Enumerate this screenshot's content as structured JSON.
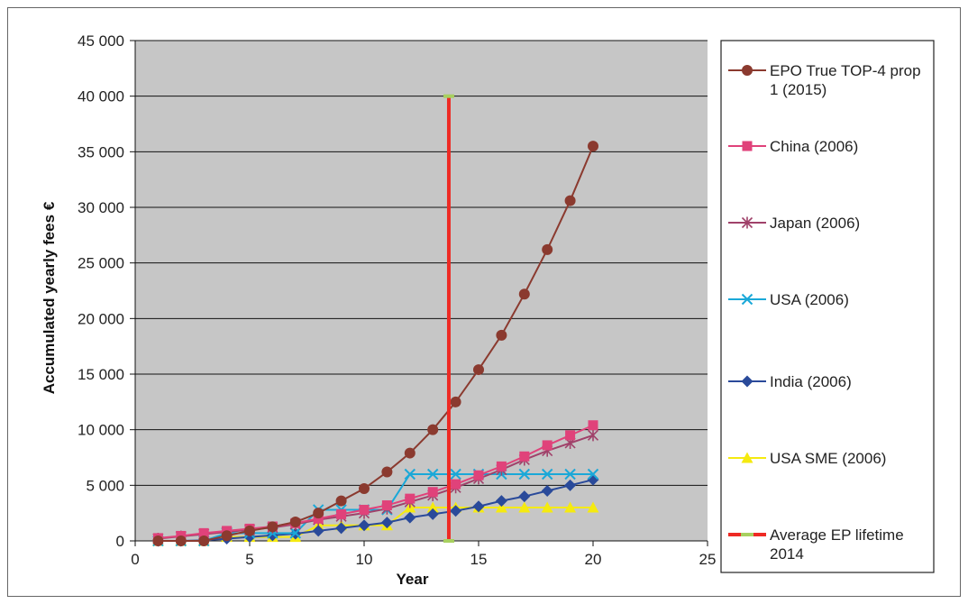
{
  "chart_data": {
    "type": "line",
    "xlabel": "Year",
    "ylabel": "Accumulated yearly fees €",
    "xlim": [
      0,
      25
    ],
    "ylim": [
      0,
      45000
    ],
    "x_ticks": [
      0,
      5,
      10,
      15,
      20,
      25
    ],
    "x_tick_labels": [
      "0",
      "5",
      "10",
      "15",
      "20",
      "25"
    ],
    "y_ticks": [
      0,
      5000,
      10000,
      15000,
      20000,
      25000,
      30000,
      35000,
      40000,
      45000
    ],
    "y_tick_labels": [
      "0",
      "5 000",
      "10 000",
      "15 000",
      "20 000",
      "25 000",
      "30 000",
      "35 000",
      "40 000",
      "45 000"
    ],
    "grid": true,
    "legend_position": "right",
    "x": [
      1,
      2,
      3,
      4,
      5,
      6,
      7,
      8,
      9,
      10,
      11,
      12,
      13,
      14,
      15,
      16,
      17,
      18,
      19,
      20
    ],
    "series": [
      {
        "name_lines": [
          "EPO True TOP-4 prop",
          "1 (2015)"
        ],
        "color": "#8b3a2f",
        "marker": "circle",
        "values": [
          0,
          0,
          0,
          470,
          900,
          1270,
          1700,
          2500,
          3600,
          4700,
          6200,
          7900,
          10000,
          12500,
          15400,
          18500,
          22200,
          26200,
          30600,
          35500
        ]
      },
      {
        "name_lines": [
          "China (2006)"
        ],
        "color": "#e0427a",
        "marker": "square",
        "values": [
          250,
          450,
          700,
          900,
          1100,
          1300,
          1600,
          2000,
          2400,
          2800,
          3200,
          3800,
          4400,
          5100,
          5900,
          6700,
          7600,
          8600,
          9500,
          10400
        ]
      },
      {
        "name_lines": [
          "Japan (2006)"
        ],
        "color": "#a0426a",
        "marker": "asterisk",
        "values": [
          200,
          400,
          600,
          800,
          1000,
          1200,
          1500,
          1900,
          2200,
          2500,
          2900,
          3500,
          4100,
          4800,
          5600,
          6400,
          7300,
          8100,
          8800,
          9500
        ]
      },
      {
        "name_lines": [
          "USA (2006)"
        ],
        "color": "#1aa8d8",
        "marker": "x",
        "values": [
          0,
          0,
          0,
          700,
          700,
          700,
          700,
          2800,
          2800,
          2800,
          2800,
          6000,
          6000,
          6000,
          6000,
          6000,
          6000,
          6000,
          6000,
          6000
        ]
      },
      {
        "name_lines": [
          "India (2006)"
        ],
        "color": "#2a4a9a",
        "marker": "diamond",
        "values": [
          0,
          0,
          50,
          200,
          350,
          500,
          650,
          900,
          1150,
          1400,
          1650,
          2100,
          2400,
          2700,
          3100,
          3600,
          4000,
          4500,
          5000,
          5500
        ]
      },
      {
        "name_lines": [
          "USA SME (2006)"
        ],
        "color": "#f5ea10",
        "marker": "triangle",
        "values": [
          0,
          0,
          0,
          350,
          350,
          350,
          350,
          1400,
          1400,
          1400,
          1400,
          3000,
          3000,
          3000,
          3000,
          3000,
          3000,
          3000,
          3000,
          3000
        ]
      }
    ],
    "vertical_line": {
      "name_lines": [
        "Average EP lifetime",
        "2014"
      ],
      "x": 13.7,
      "y_range": [
        0,
        40000
      ],
      "color": "#ee2a24",
      "end_marker_color": "#a8d060"
    }
  }
}
